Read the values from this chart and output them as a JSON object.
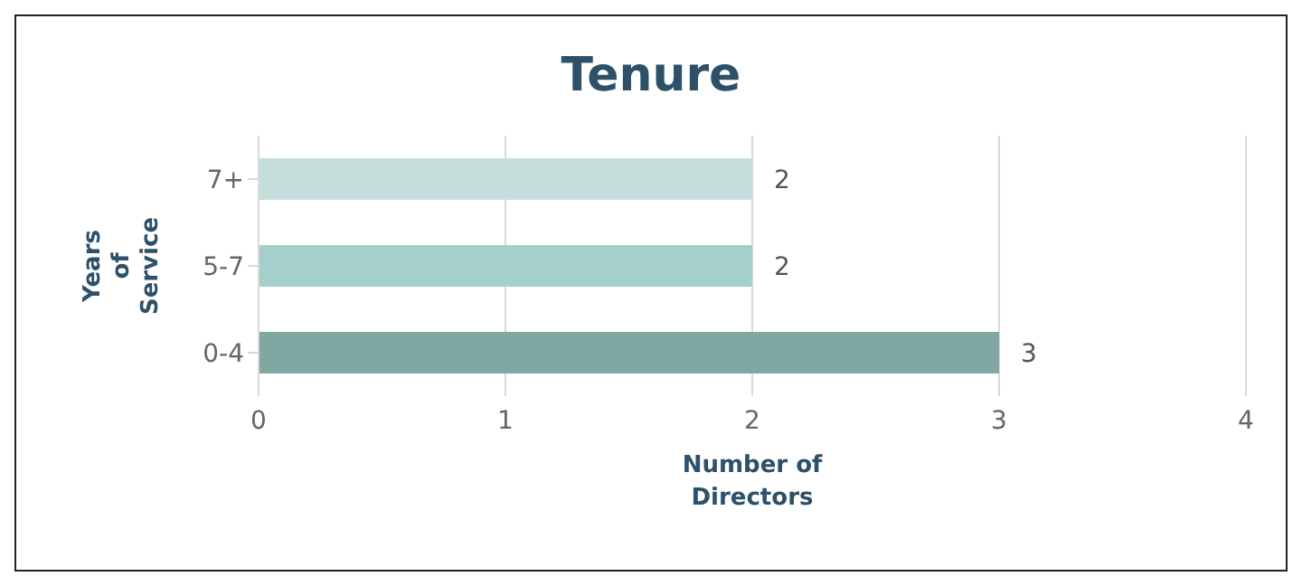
{
  "chart_data": {
    "type": "bar",
    "orientation": "horizontal",
    "title": "Tenure",
    "xlabel": "Number of Directors",
    "ylabel": "Years of Service",
    "categories": [
      "7+",
      "5-7",
      "0-4"
    ],
    "values": [
      2,
      2,
      3
    ],
    "colors": [
      "#c6dedb",
      "#a4cfca",
      "#80a7a1"
    ],
    "xlim": [
      0,
      4
    ],
    "xticks": [
      0,
      1,
      2,
      3,
      4
    ],
    "grid": "x",
    "data_labels": true
  }
}
